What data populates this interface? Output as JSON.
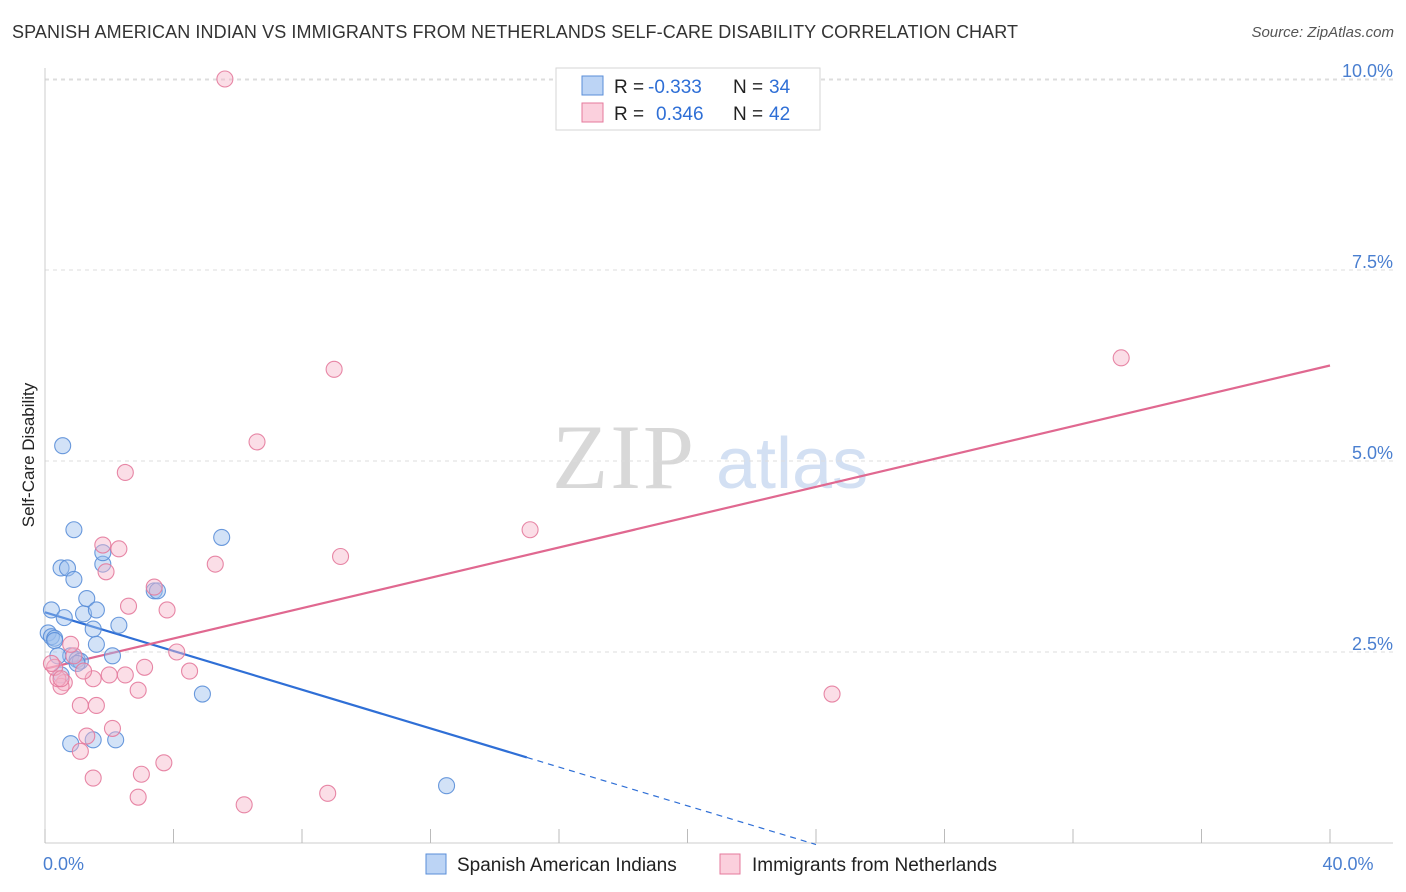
{
  "title": "SPANISH AMERICAN INDIAN VS IMMIGRANTS FROM NETHERLANDS SELF-CARE DISABILITY CORRELATION CHART",
  "source": "Source: ZipAtlas.com",
  "watermark": {
    "part1": "ZIP",
    "part2": "atlas"
  },
  "chart_data": {
    "type": "scatter",
    "ylabel": "Self-Care Disability",
    "xlabel": "",
    "xlim": [
      0,
      40
    ],
    "ylim": [
      0,
      10.5
    ],
    "x_tick_labels": [
      {
        "value": 0,
        "label": "0.0%"
      },
      {
        "value": 40,
        "label": "40.0%"
      }
    ],
    "y_tick_labels": [
      {
        "value": 2.5,
        "label": "2.5%"
      },
      {
        "value": 5.0,
        "label": "5.0%"
      },
      {
        "value": 7.5,
        "label": "7.5%"
      },
      {
        "value": 10.0,
        "label": "10.0%"
      }
    ],
    "grid": true,
    "legend_top": {
      "rows": [
        {
          "r_label": "R =",
          "r_value": "-0.333",
          "n_label": "N =",
          "n_value": "34",
          "color": "#9bbfee",
          "stroke": "#5a8ed8"
        },
        {
          "r_label": "R =",
          "r_value": "0.346",
          "n_label": "N =",
          "n_value": "42",
          "color": "#f6b6c9",
          "stroke": "#e47a9c"
        }
      ]
    },
    "series": [
      {
        "name": "Spanish American Indians",
        "color": "#9bbfee",
        "stroke": "#5a8ed8",
        "line_color": "#2f6fd6",
        "trend": {
          "x0": 0,
          "y0": 3.02,
          "x1": 15,
          "y1": 1.12,
          "dash_to_x": 24
        },
        "points": [
          [
            0.1,
            2.75
          ],
          [
            0.2,
            2.7
          ],
          [
            0.3,
            2.68
          ],
          [
            0.2,
            3.05
          ],
          [
            0.3,
            2.65
          ],
          [
            0.5,
            3.6
          ],
          [
            0.6,
            2.95
          ],
          [
            0.7,
            3.6
          ],
          [
            0.8,
            2.45
          ],
          [
            0.9,
            3.45
          ],
          [
            0.9,
            4.1
          ],
          [
            1.0,
            2.4
          ],
          [
            1.1,
            2.38
          ],
          [
            1.2,
            3.0
          ],
          [
            1.3,
            3.2
          ],
          [
            1.5,
            2.8
          ],
          [
            1.6,
            2.6
          ],
          [
            1.6,
            3.05
          ],
          [
            1.8,
            3.65
          ],
          [
            1.8,
            3.8
          ],
          [
            2.1,
            2.45
          ],
          [
            2.3,
            2.85
          ],
          [
            3.4,
            3.3
          ],
          [
            3.5,
            3.3
          ],
          [
            4.9,
            1.95
          ],
          [
            5.5,
            4.0
          ],
          [
            0.55,
            5.2
          ],
          [
            0.8,
            1.3
          ],
          [
            1.5,
            1.35
          ],
          [
            2.2,
            1.35
          ],
          [
            12.5,
            0.75
          ],
          [
            0.4,
            2.45
          ],
          [
            0.5,
            2.2
          ],
          [
            1.0,
            2.35
          ]
        ]
      },
      {
        "name": "Immigrants from Netherlands",
        "color": "#f6b6c9",
        "stroke": "#e47a9c",
        "line_color": "#e06890",
        "trend": {
          "x0": 0,
          "y0": 2.28,
          "x1": 40,
          "y1": 6.25
        },
        "points": [
          [
            5.6,
            10.0
          ],
          [
            9.0,
            6.2
          ],
          [
            6.6,
            5.25
          ],
          [
            2.5,
            4.85
          ],
          [
            9.2,
            3.75
          ],
          [
            15.1,
            4.1
          ],
          [
            33.5,
            6.35
          ],
          [
            24.5,
            1.95
          ],
          [
            5.3,
            3.65
          ],
          [
            2.3,
            3.85
          ],
          [
            1.8,
            3.9
          ],
          [
            1.9,
            3.55
          ],
          [
            2.6,
            3.1
          ],
          [
            3.4,
            3.35
          ],
          [
            3.8,
            3.05
          ],
          [
            4.1,
            2.5
          ],
          [
            4.5,
            2.25
          ],
          [
            3.1,
            2.3
          ],
          [
            2.9,
            2.0
          ],
          [
            2.5,
            2.2
          ],
          [
            2.0,
            2.2
          ],
          [
            1.5,
            2.15
          ],
          [
            1.2,
            2.25
          ],
          [
            0.9,
            2.45
          ],
          [
            0.8,
            2.6
          ],
          [
            0.6,
            2.1
          ],
          [
            0.5,
            2.05
          ],
          [
            0.4,
            2.15
          ],
          [
            0.3,
            2.3
          ],
          [
            0.2,
            2.35
          ],
          [
            0.5,
            2.15
          ],
          [
            1.1,
            1.8
          ],
          [
            1.6,
            1.8
          ],
          [
            2.1,
            1.5
          ],
          [
            1.3,
            1.4
          ],
          [
            1.1,
            1.2
          ],
          [
            1.5,
            0.85
          ],
          [
            3.0,
            0.9
          ],
          [
            3.7,
            1.05
          ],
          [
            2.9,
            0.6
          ],
          [
            6.2,
            0.5
          ],
          [
            8.8,
            0.65
          ]
        ]
      }
    ],
    "bottom_legend": [
      "Spanish American Indians",
      "Immigrants from Netherlands"
    ]
  }
}
